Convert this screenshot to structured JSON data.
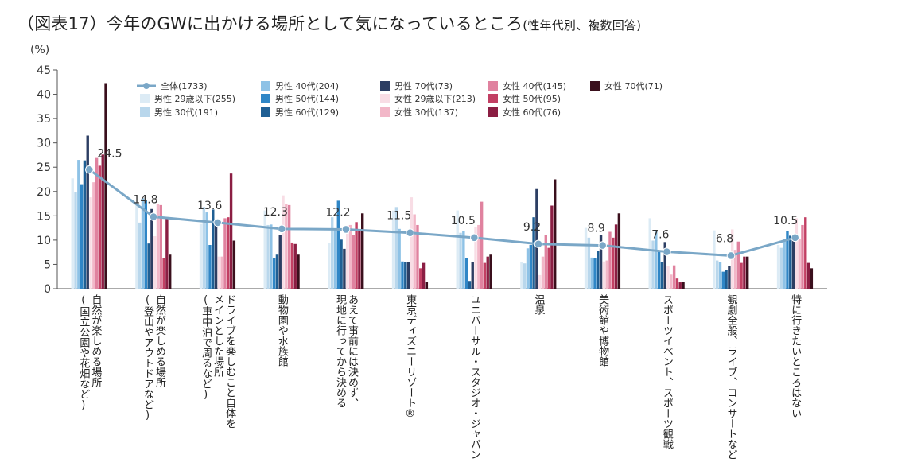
{
  "title": "（図表17）今年のGWに出かける場所として気になっているところ",
  "subtitle": "(性年代別、複数回答)",
  "chart_data": {
    "type": "bar",
    "yunit": "(%)",
    "ylim": [
      0,
      45
    ],
    "yticks": [
      0,
      5,
      10,
      15,
      20,
      25,
      30,
      35,
      40,
      45
    ],
    "grid": false,
    "legend_position": "top",
    "categories": [
      [
        "自然が楽しめる場所",
        "(国立公園や花畑など)"
      ],
      [
        "自然が楽しめる場所",
        "(登山やアウトドアなど)"
      ],
      [
        "ドライブを楽しむこと自体を",
        "メインとした場所",
        "(車中泊で周るなど)"
      ],
      [
        "動物園や水族館"
      ],
      [
        "あえて事前には決めず、",
        "現地に行ってから決める"
      ],
      [
        "東京ディズニーリゾート®"
      ],
      [
        "ユニバーサル・スタジオ・ジャパン"
      ],
      [
        "温泉"
      ],
      [
        "美術館や博物館"
      ],
      [
        "スポーツイベント、スポーツ観戦"
      ],
      [
        "観劇全般、ライブ、コンサートなど"
      ],
      [
        "特に行きたいところはない"
      ]
    ],
    "total": {
      "name": "全体(1733)",
      "color": "#7aa7c7",
      "values": [
        24.5,
        14.8,
        13.6,
        12.3,
        12.2,
        11.5,
        10.5,
        9.2,
        8.9,
        7.6,
        6.8,
        10.5
      ],
      "labels": [
        "24.5",
        "14.8",
        "13.6",
        "12.3",
        "12.2",
        "11.5",
        "10.5",
        "9.2",
        "8.9",
        "7.6",
        "6.8",
        "10.5"
      ]
    },
    "series": [
      {
        "name": "男性 29歳以下(255)",
        "color": "#dcebf5",
        "values": [
          22.7,
          17.3,
          13.3,
          16.1,
          9.4,
          16.1,
          16.1,
          5.5,
          12.5,
          14.5,
          12.0,
          9.0
        ]
      },
      {
        "name": "男性 30代(191)",
        "color": "#b9d7ec",
        "values": [
          19.9,
          13.6,
          16.8,
          13.1,
          14.7,
          16.8,
          11.5,
          5.2,
          10.5,
          9.9,
          5.8,
          8.4
        ]
      },
      {
        "name": "男性 40代(204)",
        "color": "#8ec2e6",
        "values": [
          26.5,
          18.6,
          15.7,
          13.2,
          12.3,
          12.3,
          11.8,
          8.3,
          6.4,
          11.8,
          5.4,
          10.2
        ]
      },
      {
        "name": "男性 50代(144)",
        "color": "#2f86c6",
        "values": [
          21.5,
          18.1,
          9.0,
          6.3,
          18.1,
          5.6,
          6.3,
          9.0,
          6.3,
          7.6,
          3.5,
          11.8
        ]
      },
      {
        "name": "男性 60代(129)",
        "color": "#1f5f94",
        "values": [
          26.4,
          9.3,
          16.3,
          7.0,
          10.1,
          5.4,
          1.6,
          14.7,
          7.8,
          5.4,
          3.9,
          10.9
        ]
      },
      {
        "name": "男性 70代(73)",
        "color": "#2c3e63",
        "values": [
          31.5,
          16.4,
          13.7,
          11.0,
          8.2,
          5.4,
          5.5,
          20.5,
          11.0,
          9.6,
          4.6,
          10.2
        ]
      },
      {
        "name": "女性 29歳以下(213)",
        "color": "#f8dde5",
        "values": [
          18.8,
          10.8,
          6.6,
          19.2,
          11.3,
          18.8,
          12.7,
          2.8,
          5.6,
          4.7,
          12.2,
          14.5
        ]
      },
      {
        "name": "女性 30代(137)",
        "color": "#f2b7c8",
        "values": [
          21.9,
          17.5,
          6.6,
          17.5,
          13.1,
          15.3,
          13.1,
          6.6,
          5.8,
          2.9,
          8.0,
          10.2
        ]
      },
      {
        "name": "女性 40代(145)",
        "color": "#e0829f",
        "values": [
          26.9,
          17.2,
          14.5,
          17.2,
          11.0,
          13.1,
          17.9,
          11.0,
          11.7,
          4.8,
          9.7,
          13.1
        ]
      },
      {
        "name": "女性 50代(95)",
        "color": "#c23f63",
        "values": [
          25.3,
          6.3,
          14.7,
          9.5,
          13.7,
          4.2,
          5.3,
          8.4,
          10.5,
          2.1,
          5.3,
          14.7
        ]
      },
      {
        "name": "女性 60代(76)",
        "color": "#8b1e43",
        "values": [
          27.6,
          14.5,
          23.7,
          9.2,
          11.8,
          5.3,
          6.6,
          17.1,
          13.2,
          1.3,
          6.6,
          5.3
        ]
      },
      {
        "name": "女性 70代(71)",
        "color": "#3a0f1c",
        "values": [
          42.3,
          7.0,
          9.9,
          7.0,
          15.5,
          1.4,
          7.0,
          22.5,
          15.5,
          1.4,
          6.6,
          4.2
        ]
      }
    ]
  }
}
